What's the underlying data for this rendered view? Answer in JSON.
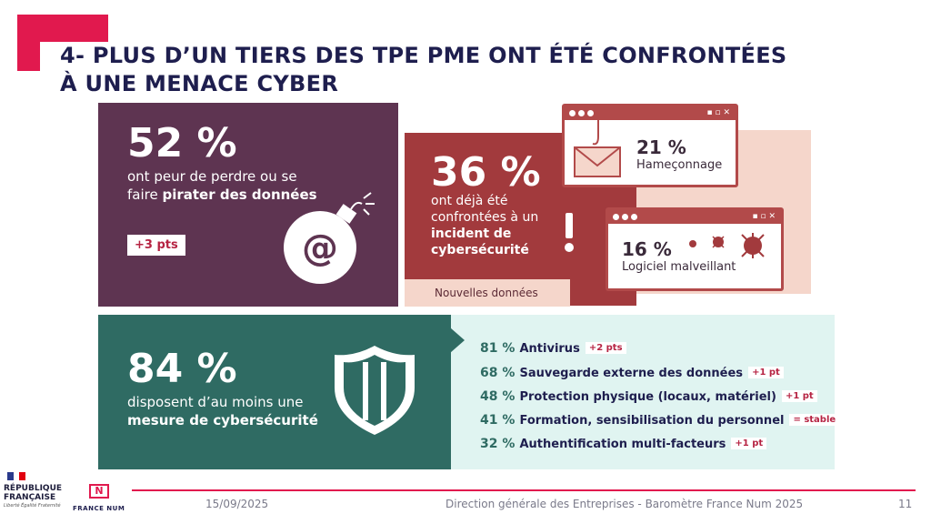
{
  "title": {
    "line1": "4- PLUS D’UN TIERS DES TPE PME ONT ÉTÉ CONFRONTÉES",
    "line2": "À UNE MENACE CYBER"
  },
  "fear": {
    "pct": "52 %",
    "desc_line1": "ont peur de perdre ou se",
    "desc_line2_plain": "faire ",
    "desc_line2_bold": "pirater des données",
    "badge": "+3 pts",
    "icon": "bomb-at-icon"
  },
  "incident": {
    "pct": "36 %",
    "desc_line1": "ont déjà été",
    "desc_line2": "confrontées à un",
    "desc_line3": "incident de",
    "desc_line4": "cybersécurité",
    "new_label": "Nouvelles données",
    "icon": "exclamation-icon"
  },
  "phishing": {
    "pct": "21 %",
    "label": "Hameçonnage",
    "icon": "envelope-hook-icon"
  },
  "malware": {
    "pct": "16 %",
    "label": "Logiciel malveillant",
    "icon": "virus-icon"
  },
  "measures": {
    "pct": "84 %",
    "desc_line1": "disposent d’au moins une",
    "desc_line2": "mesure de cybersécurité",
    "icon": "shield-icon",
    "items": [
      {
        "pct": "81 %",
        "label": "Antivirus",
        "badge": "+2 pts"
      },
      {
        "pct": "68 %",
        "label": "Sauvegarde externe des données",
        "badge": "+1 pt"
      },
      {
        "pct": "48 %",
        "label": "Protection physique (locaux, matériel)",
        "badge": "+1 pt"
      },
      {
        "pct": "41 %",
        "label": "Formation, sensibilisation du personnel",
        "badge": "= stable"
      },
      {
        "pct": "32 %",
        "label": "Authentification multi-facteurs",
        "badge": "+1 pt"
      }
    ]
  },
  "footer": {
    "rf_line1": "RÉPUBLIQUE",
    "rf_line2": "FRANÇAISE",
    "rf_motto": "Liberté Égalité Fraternité",
    "fn_logo": "N",
    "fn_text": "FRANCE NUM",
    "date": "15/09/2025",
    "source": "Direction générale des Entreprises - Baromètre France Num 2025",
    "page": "11"
  },
  "colors": {
    "accent": "#e1194e",
    "purple": "#5e3451",
    "red": "#a23a3d",
    "teal": "#2f6b63",
    "light_teal": "#e0f4f1",
    "light_pink": "#f5d6cb"
  }
}
